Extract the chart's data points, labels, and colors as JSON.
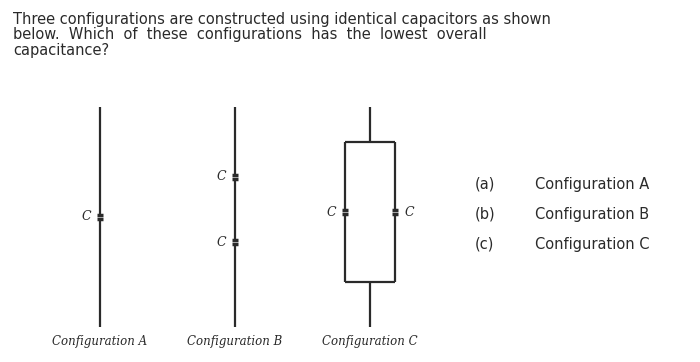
{
  "bg_color": "#ffffff",
  "text_color": "#2a2a2a",
  "line_color": "#2a2a2a",
  "title_lines": [
    "Three configurations are constructed using identical capacitors as shown",
    "below.  Which  of  these  configurations  has  the  lowest  overall",
    "capacitance?"
  ],
  "options_a": "(a)",
  "options_b": "(b)",
  "options_c": "(c)",
  "opt_label_a": "Configuration A",
  "opt_label_b": "Configuration B",
  "opt_label_c": "Configuration C",
  "cap_phw": 0.032,
  "cap_pg": 0.016,
  "line_lw": 1.6,
  "plate_lw": 2.5,
  "font_size_title": 10.5,
  "font_size_label": 9.0,
  "font_size_caption": 8.5,
  "font_size_option": 10.5
}
